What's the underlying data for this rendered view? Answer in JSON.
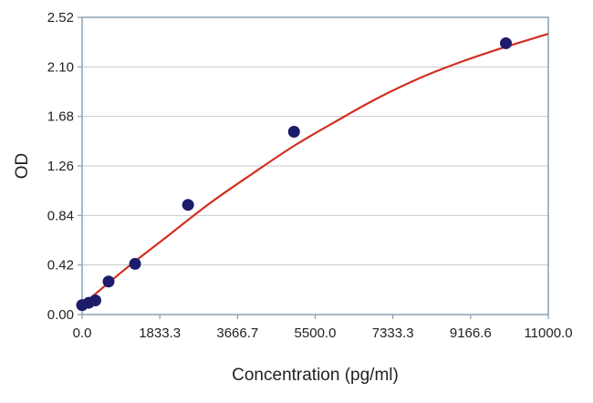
{
  "chart_data": {
    "type": "scatter",
    "title": "",
    "xlabel": "Concentration (pg/ml)",
    "ylabel": "OD",
    "xlim": [
      0,
      11000
    ],
    "ylim": [
      0,
      2.52
    ],
    "x_ticks": [
      "0.0",
      "1833.3",
      "3666.7",
      "5500.0",
      "7333.3",
      "9166.6",
      "11000.0"
    ],
    "y_ticks": [
      "0.00",
      "0.42",
      "0.84",
      "1.26",
      "1.68",
      "2.10",
      "2.52"
    ],
    "grid": "horizontal",
    "legend": "none",
    "series": [
      {
        "kind": "points",
        "x": [
          0,
          156,
          312,
          625,
          1250,
          2500,
          5000,
          10000
        ],
        "y": [
          0.08,
          0.1,
          0.12,
          0.28,
          0.43,
          0.93,
          1.55,
          2.3
        ]
      },
      {
        "kind": "fit-curve",
        "x": [
          0,
          1000,
          2000,
          3000,
          4000,
          5000,
          6000,
          7000,
          8000,
          9000,
          10000,
          11000
        ],
        "y": [
          0.08,
          0.38,
          0.66,
          0.94,
          1.19,
          1.43,
          1.64,
          1.84,
          2.01,
          2.15,
          2.27,
          2.38
        ]
      }
    ],
    "colors": {
      "points": "#1c1c6b",
      "curve": "#d22f1f",
      "axis": "#8aa0b4",
      "grid": "#c8c8c8"
    }
  }
}
